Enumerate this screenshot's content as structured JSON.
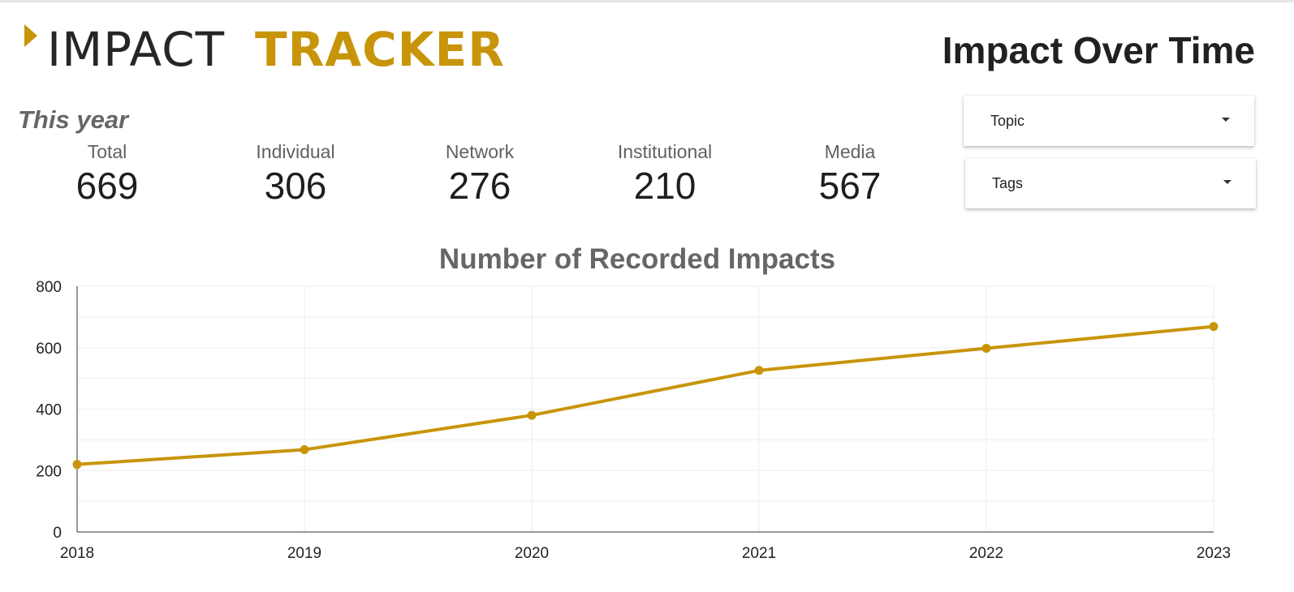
{
  "brand": {
    "logo_word_a": "IMPACT",
    "logo_word_b": "TRACKER",
    "accent_color": "#c8950a",
    "dark_color": "#262626"
  },
  "header": {
    "title": "Impact Over Time"
  },
  "summary": {
    "section_label": "This year",
    "stats": [
      {
        "label": "Total",
        "value": "669"
      },
      {
        "label": "Individual",
        "value": "306"
      },
      {
        "label": "Network",
        "value": "276"
      },
      {
        "label": "Institutional",
        "value": "210"
      },
      {
        "label": "Media",
        "value": "567"
      }
    ]
  },
  "filters": {
    "topic": {
      "label": "Topic",
      "icon": "caret-down-icon"
    },
    "tags": {
      "label": "Tags",
      "icon": "caret-down-icon"
    }
  },
  "chart_data": {
    "type": "line",
    "title": "Number of Recorded Impacts",
    "xlabel": "",
    "ylabel": "",
    "x": [
      "2018",
      "2019",
      "2020",
      "2021",
      "2022",
      "2023"
    ],
    "series": [
      {
        "values": [
          220,
          268,
          380,
          526,
          598,
          669
        ],
        "color": "#c8950a"
      }
    ],
    "ylim": [
      0,
      800
    ],
    "yticks": [
      "0",
      "200",
      "400",
      "600",
      "800"
    ],
    "grid": true,
    "legend": "none"
  }
}
